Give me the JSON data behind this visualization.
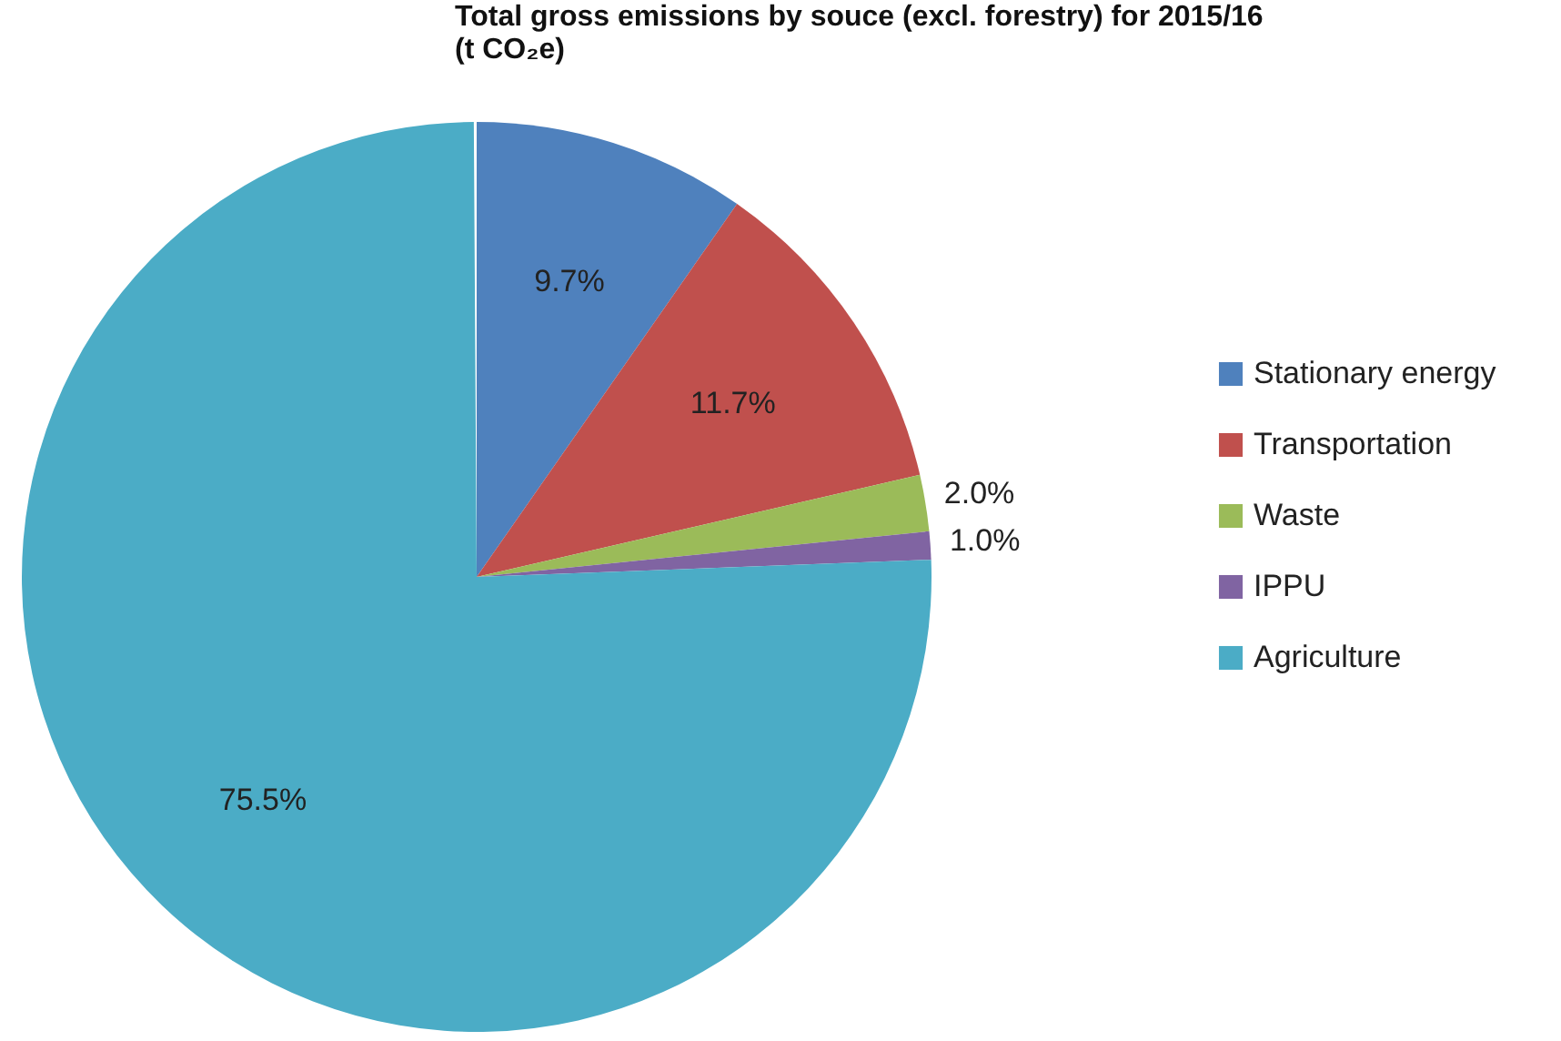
{
  "chart_data": {
    "type": "pie",
    "title": [
      "Total gross emissions by souce (excl. forestry) for 2015/16",
      "(t CO₂e)"
    ],
    "categories": [
      "Stationary energy",
      "Transportation",
      "Waste",
      "IPPU",
      "Agriculture"
    ],
    "values": [
      9.7,
      11.7,
      2.0,
      1.0,
      75.5
    ],
    "colors": [
      "#4f81bd",
      "#c0504d",
      "#9bbb59",
      "#8064a2",
      "#4bacc6"
    ],
    "value_labels": [
      "9.7%",
      "11.7%",
      "2.0%",
      "1.0%",
      "75.5%"
    ],
    "legend": "right"
  }
}
